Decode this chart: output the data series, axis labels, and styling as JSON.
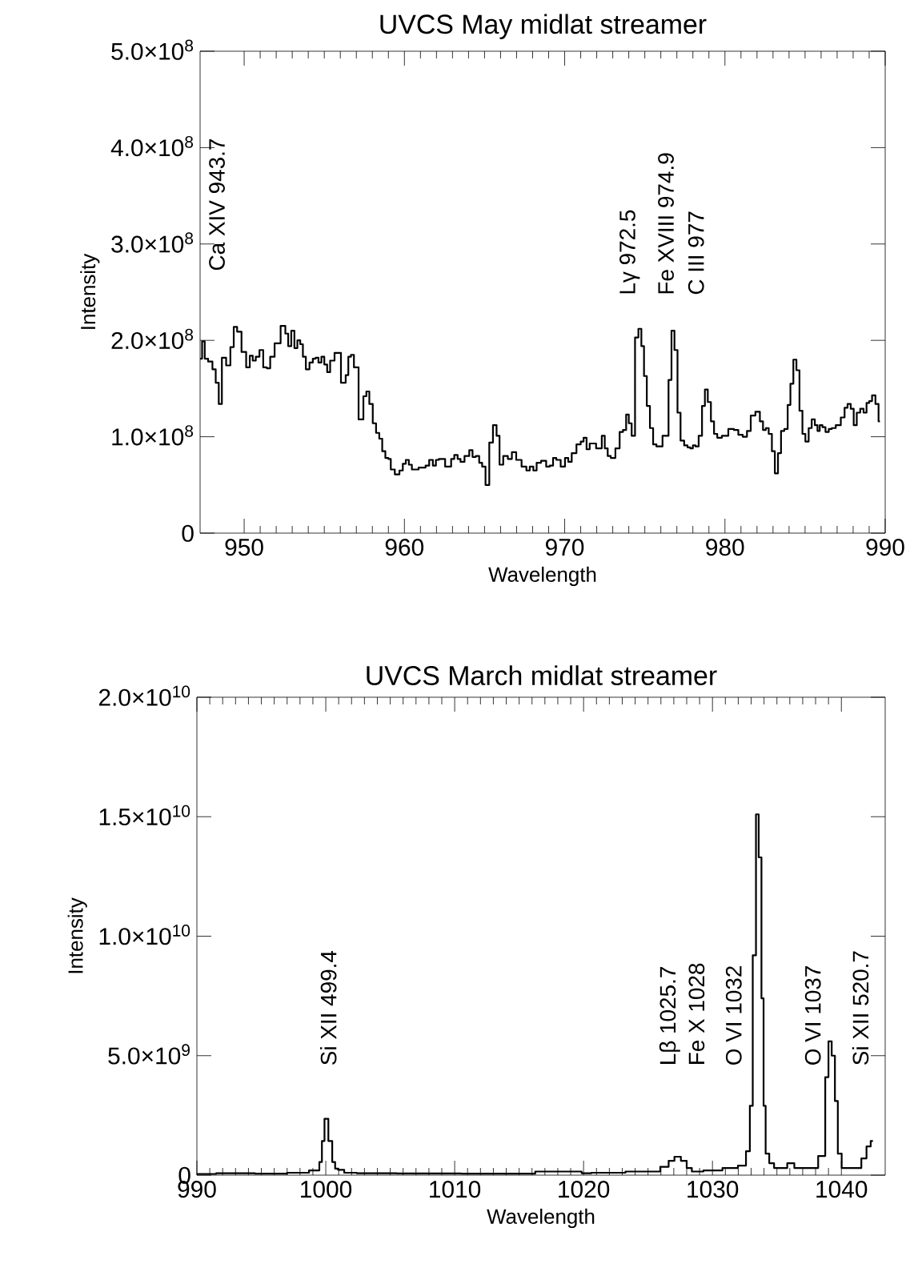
{
  "chart_data": [
    {
      "type": "step",
      "title": "UVCS May midlat streamer",
      "xlabel": "Wavelength",
      "ylabel": "Intensity",
      "xlim": [
        947.25,
        990
      ],
      "ylim": [
        0,
        500000000.0
      ],
      "xticks": [
        950,
        960,
        970,
        980,
        990
      ],
      "yticks": [
        0,
        {
          "value": 100000000.0,
          "label": "1.0×10$^{8}$"
        },
        {
          "value": 200000000.0,
          "label": "2.0×10$^{8}$"
        },
        {
          "value": 300000000.0,
          "label": "3.0×10$^{8}$"
        },
        {
          "value": 400000000.0,
          "label": "4.0×10$^{8}$"
        },
        {
          "value": 500000000.0,
          "label": "5.0×10$^{8}$"
        }
      ],
      "series": [
        {
          "color": "#000000",
          "x": [
            947.25,
            947.5,
            947.58,
            947.92,
            948.12,
            948.33,
            948.5,
            948.72,
            949.03,
            949.25,
            949.45,
            949.67,
            950.0,
            950.25,
            950.45,
            950.62,
            950.83,
            951.08,
            951.3,
            951.53,
            951.72,
            952.08,
            952.47,
            952.67,
            952.83,
            953.05,
            953.22,
            953.42,
            953.58,
            953.75,
            953.95,
            954.2,
            954.37,
            954.55,
            954.72,
            954.92,
            955.08,
            955.28,
            955.45,
            955.83,
            956.25,
            956.42,
            956.58,
            956.75,
            956.95,
            957.33,
            957.55,
            957.7,
            957.92,
            958.13,
            958.33,
            958.53,
            958.7,
            958.92,
            959.08,
            959.22,
            959.58,
            959.8,
            960.0,
            960.17,
            960.38,
            960.55,
            961.22,
            961.42,
            961.67,
            961.88,
            962.05,
            962.25,
            962.83,
            963.0,
            963.22,
            963.42,
            963.58,
            963.92,
            964.17,
            964.33,
            964.58,
            964.75,
            964.95,
            965.17,
            965.42,
            965.63,
            965.87,
            966.0,
            966.33,
            966.58,
            966.83,
            967.12,
            967.5,
            967.72,
            967.92,
            968.17,
            968.33,
            968.72,
            968.97,
            969.17,
            969.38,
            969.58,
            969.92,
            970.12,
            970.33,
            970.55,
            970.92,
            971.08,
            971.28,
            971.45,
            971.67,
            972.25,
            972.38,
            972.62,
            972.75,
            973.0,
            973.33,
            973.53,
            973.75,
            973.92,
            974.08,
            974.28,
            974.5,
            974.7,
            974.87,
            975.03,
            975.22,
            975.42,
            975.62,
            975.83,
            976.38,
            976.58,
            976.75,
            976.95,
            977.13,
            977.33,
            977.58,
            977.75,
            977.92,
            978.08,
            978.25,
            978.47,
            978.67,
            978.83,
            979.03,
            979.22,
            979.42,
            979.62,
            980.0,
            980.42,
            980.7,
            980.97,
            981.25,
            981.5,
            981.72,
            982.08,
            982.28,
            982.47,
            982.63,
            982.83,
            983.03,
            983.2,
            983.42,
            983.58,
            983.83,
            984.0,
            984.17,
            984.37,
            984.55,
            984.75,
            984.92,
            985.12,
            985.33,
            985.5,
            985.72,
            985.83,
            986.0,
            986.17,
            986.38,
            986.58,
            986.75,
            987.08,
            987.38,
            987.55,
            987.75,
            987.95,
            988.12,
            988.33,
            988.55,
            988.75,
            988.92,
            989.08,
            989.28,
            989.5,
            989.67
          ],
          "values": [
            181000000.0,
            199000000.0,
            181000000.0,
            178000000.0,
            170000000.0,
            156000000.0,
            134000000.0,
            182000000.0,
            174000000.0,
            193000000.0,
            214000000.0,
            209000000.0,
            188000000.0,
            172000000.0,
            184000000.0,
            179000000.0,
            183000000.0,
            190000000.0,
            172000000.0,
            171000000.0,
            183000000.0,
            197000000.0,
            215000000.0,
            207000000.0,
            194000000.0,
            210000000.0,
            192000000.0,
            200000000.0,
            196000000.0,
            183000000.0,
            170000000.0,
            177000000.0,
            181000000.0,
            182000000.0,
            177000000.0,
            183000000.0,
            175000000.0,
            167000000.0,
            179000000.0,
            187000000.0,
            156000000.0,
            164000000.0,
            183000000.0,
            185000000.0,
            172000000.0,
            118000000.0,
            142000000.0,
            147000000.0,
            134000000.0,
            114000000.0,
            104000000.0,
            98000000.0,
            85000000.0,
            78000000.0,
            77000000.0,
            66000000.0,
            61000000.0,
            65000000.0,
            72000000.0,
            76000000.0,
            71000000.0,
            66000000.0,
            68000000.0,
            70000000.0,
            76000000.0,
            70000000.0,
            76000000.0,
            77000000.0,
            69000000.0,
            77000000.0,
            81000000.0,
            77000000.0,
            74000000.0,
            80000000.0,
            86000000.0,
            79000000.0,
            80000000.0,
            73000000.0,
            69000000.0,
            50000000.0,
            94000000.0,
            112000000.0,
            101000000.0,
            71000000.0,
            80000000.0,
            77000000.0,
            84000000.0,
            76000000.0,
            69000000.0,
            65000000.0,
            69000000.0,
            65000000.0,
            73000000.0,
            75000000.0,
            69000000.0,
            70000000.0,
            78000000.0,
            76000000.0,
            69000000.0,
            78000000.0,
            74000000.0,
            83000000.0,
            92000000.0,
            95000000.0,
            99000000.0,
            87000000.0,
            93000000.0,
            88000000.0,
            101000000.0,
            88000000.0,
            80000000.0,
            78000000.0,
            88000000.0,
            105000000.0,
            107000000.0,
            123000000.0,
            114000000.0,
            101000000.0,
            203000000.0,
            212000000.0,
            194000000.0,
            163000000.0,
            132000000.0,
            109000000.0,
            92000000.0,
            90000000.0,
            101000000.0,
            159000000.0,
            210000000.0,
            190000000.0,
            125000000.0,
            96000000.0,
            91000000.0,
            89000000.0,
            88000000.0,
            91000000.0,
            90000000.0,
            101000000.0,
            132000000.0,
            149000000.0,
            136000000.0,
            116000000.0,
            103000000.0,
            99000000.0,
            101000000.0,
            108000000.0,
            107000000.0,
            102000000.0,
            100000000.0,
            106000000.0,
            122000000.0,
            126000000.0,
            116000000.0,
            107000000.0,
            109000000.0,
            103000000.0,
            85000000.0,
            62000000.0,
            83000000.0,
            106000000.0,
            108000000.0,
            133000000.0,
            155000000.0,
            180000000.0,
            169000000.0,
            127000000.0,
            103000000.0,
            95000000.0,
            109000000.0,
            118000000.0,
            112000000.0,
            106000000.0,
            112000000.0,
            110000000.0,
            105000000.0,
            108000000.0,
            109000000.0,
            112000000.0,
            120000000.0,
            130000000.0,
            134000000.0,
            129000000.0,
            112000000.0,
            125000000.0,
            129000000.0,
            125000000.0,
            135000000.0,
            137000000.0,
            143000000.0,
            134000000.0,
            116000000.0
          ]
        }
      ],
      "annotations": [
        "Ca XIV 943.7",
        "Lγ 972.5",
        "Fe XVIII 974.9",
        "C III 977"
      ]
    },
    {
      "type": "step",
      "title": "UVCS March midlat streamer",
      "xlabel": "Wavelength",
      "ylabel": "Intensity",
      "xlim": [
        990,
        1043.4
      ],
      "ylim": [
        0,
        20000000000.0
      ],
      "xticks": [
        990,
        1000,
        1010,
        1020,
        1030,
        1040
      ],
      "yticks": [
        0,
        {
          "value": 5000000000.0,
          "label": "5.0×10$^{9}$"
        },
        {
          "value": 10000000000.0,
          "label": "1.0×10$^{10}$"
        },
        {
          "value": 15000000000.0,
          "label": "1.5×10$^{10}$"
        },
        {
          "value": 20000000000.0,
          "label": "2.0×10$^{10}$"
        }
      ],
      "series": [
        {
          "color": "#000000",
          "x": [
            990,
            993,
            996,
            998,
            999.4,
            999.6,
            999.8,
            1000.0,
            1000.4,
            1000.6,
            1000.85,
            1001.06,
            1001.8,
            1003,
            1008,
            1013,
            1019.5,
            1020.2,
            1021,
            1025.5,
            1026.4,
            1026.8,
            1027.3,
            1027.8,
            1028.2,
            1028.6,
            1030,
            1031.55,
            1032.4,
            1032.8,
            1033.0,
            1033.25,
            1033.5,
            1033.67,
            1033.93,
            1034.0,
            1034.25,
            1034.56,
            1035.0,
            1035.5,
            1036.1,
            1036.6,
            1037.8,
            1038.6,
            1038.9,
            1039.1,
            1039.4,
            1039.6,
            1039.85,
            1040.2,
            1041.3,
            1041.8,
            1042.1,
            1042.45
          ],
          "values": [
            50000000.0,
            80000000.0,
            60000000.0,
            100000000.0,
            200000000.0,
            550000000.0,
            1430000000.0,
            2360000000.0,
            1430000000.0,
            550000000.0,
            270000000.0,
            220000000.0,
            100000000.0,
            80000000.0,
            70000000.0,
            60000000.0,
            150000000.0,
            80000000.0,
            100000000.0,
            150000000.0,
            350000000.0,
            600000000.0,
            770000000.0,
            600000000.0,
            300000000.0,
            150000000.0,
            200000000.0,
            300000000.0,
            400000000.0,
            1000000000.0,
            2900000000.0,
            9200000000.0,
            15100000000.0,
            13300000000.0,
            7400000000.0,
            2900000000.0,
            900000000.0,
            500000000.0,
            300000000.0,
            300000000.0,
            500000000.0,
            300000000.0,
            300000000.0,
            800000000.0,
            4100000000.0,
            5600000000.0,
            5000000000.0,
            3100000000.0,
            900000000.0,
            300000000.0,
            300000000.0,
            700000000.0,
            1200000000.0,
            1430000000.0
          ]
        }
      ],
      "annotations": [
        "Si XII 499.4",
        "Lβ 1025.7",
        "Fe X 1028",
        "O VI 1032",
        "O VI 1037",
        "Si XII 520.7"
      ]
    }
  ]
}
